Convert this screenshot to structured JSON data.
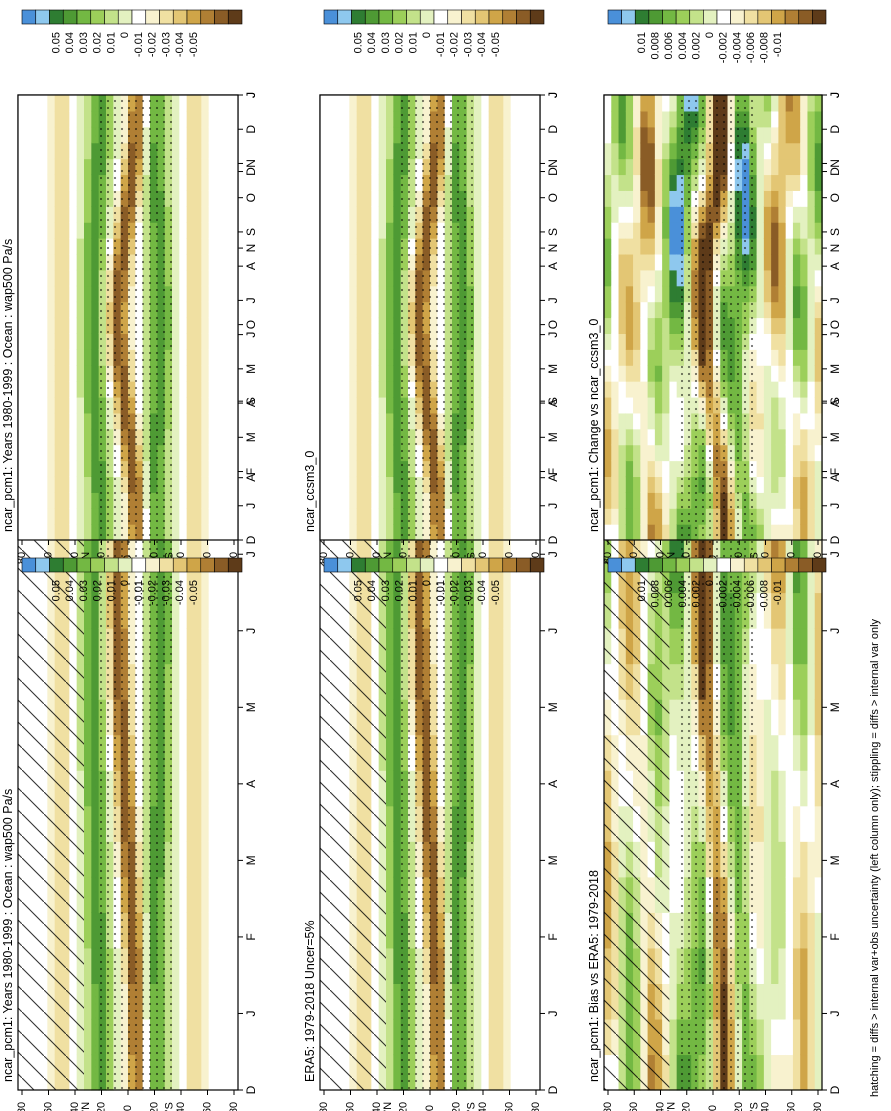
{
  "footnote": "hatching = diffs > internal var+obs uncertainty (left column only); stippling = diffs > internal var only",
  "month_labels": [
    "D",
    "J",
    "F",
    "M",
    "A",
    "M",
    "J",
    "J",
    "A",
    "S",
    "O",
    "N",
    "D",
    "J"
  ],
  "lat_labels": [
    "80",
    "60",
    "40",
    "20",
    "0",
    "20",
    "40",
    "60",
    "80"
  ],
  "lat_hemi": {
    "north": "°N",
    "south": "°S"
  },
  "scales": {
    "main": {
      "labels": [
        "0.05",
        "0.04",
        "0.03",
        "0.02",
        "0.01",
        "0",
        "-0.01",
        "-0.02",
        "-0.03",
        "-0.04",
        "-0.05"
      ],
      "colors": [
        "#4a90d9",
        "#8ec8ee",
        "#2e7d32",
        "#4e9a34",
        "#73b843",
        "#9ccf5a",
        "#c3e28a",
        "#e3f1c0",
        "#ffffff",
        "#f8f2cf",
        "#f0e0a2",
        "#e3c674",
        "#cfa548",
        "#b07f34",
        "#8a5c26",
        "#5e3b19"
      ]
    },
    "diff": {
      "labels": [
        "0.01",
        "0.008",
        "0.006",
        "0.004",
        "0.002",
        "0",
        "-0.002",
        "-0.004",
        "-0.006",
        "-0.008",
        "-0.01"
      ],
      "colors": [
        "#4a90d9",
        "#8ec8ee",
        "#2e7d32",
        "#4e9a34",
        "#73b843",
        "#9ccf5a",
        "#c3e28a",
        "#e3f1c0",
        "#ffffff",
        "#f8f2cf",
        "#f0e0a2",
        "#e3c674",
        "#cfa548",
        "#b07f34",
        "#8a5c26",
        "#5e3b19"
      ]
    }
  },
  "panels": [
    {
      "id": "p1",
      "title": "ncar_pcm1: Years 1980-1999 : Ocean : wap500 Pa/s",
      "scale": "main",
      "hatch": true,
      "stipple": true
    },
    {
      "id": "p2",
      "title": "ncar_pcm1: Years 1980-1999 : Ocean : wap500 Pa/s",
      "scale": "main",
      "hatch": false,
      "stipple": true
    },
    {
      "id": "p3",
      "title": "ERA5: 1979-2018 Uncer=5%",
      "scale": "main",
      "hatch": true,
      "stipple": true
    },
    {
      "id": "p4",
      "title": "ncar_ccsm3_0",
      "scale": "main",
      "hatch": false,
      "stipple": true
    },
    {
      "id": "p5",
      "title": "ncar_pcm1: Bias vs ERA5: 1979-2018",
      "scale": "diff",
      "hatch": true,
      "stipple": true
    },
    {
      "id": "p6",
      "title": "ncar_pcm1: Change vs ncar_ccsm3_0",
      "scale": "diff",
      "hatch": false,
      "stipple": true
    }
  ]
}
